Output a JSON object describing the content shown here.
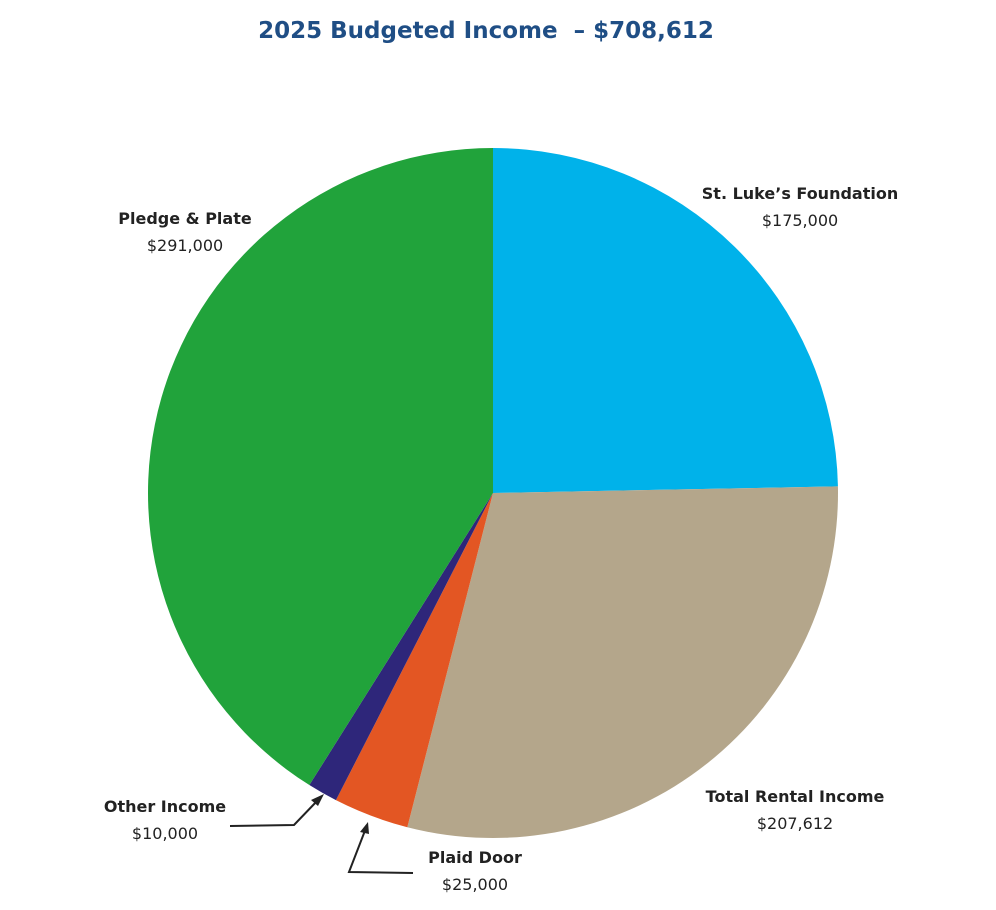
{
  "chart_data": {
    "type": "pie",
    "title": "2025 Budgeted Income  – $708,612",
    "start": "top",
    "direction": "clockwise",
    "slices": [
      {
        "label": "St. Luke’s Foundation",
        "value": 175000,
        "value_label": "$175,000",
        "color": "#00b2ea"
      },
      {
        "label": "Total Rental Income",
        "value": 207612,
        "value_label": "$207,612",
        "color": "#b4a68b"
      },
      {
        "label": "Plaid Door",
        "value": 25000,
        "value_label": "$25,000",
        "color": "#e35623"
      },
      {
        "label": "Other Income",
        "value": 10000,
        "value_label": "$10,000",
        "color": "#2e267a"
      },
      {
        "label": "Pledge & Plate",
        "value": 291000,
        "value_label": "$291,000",
        "color": "#21a33b"
      }
    ]
  }
}
